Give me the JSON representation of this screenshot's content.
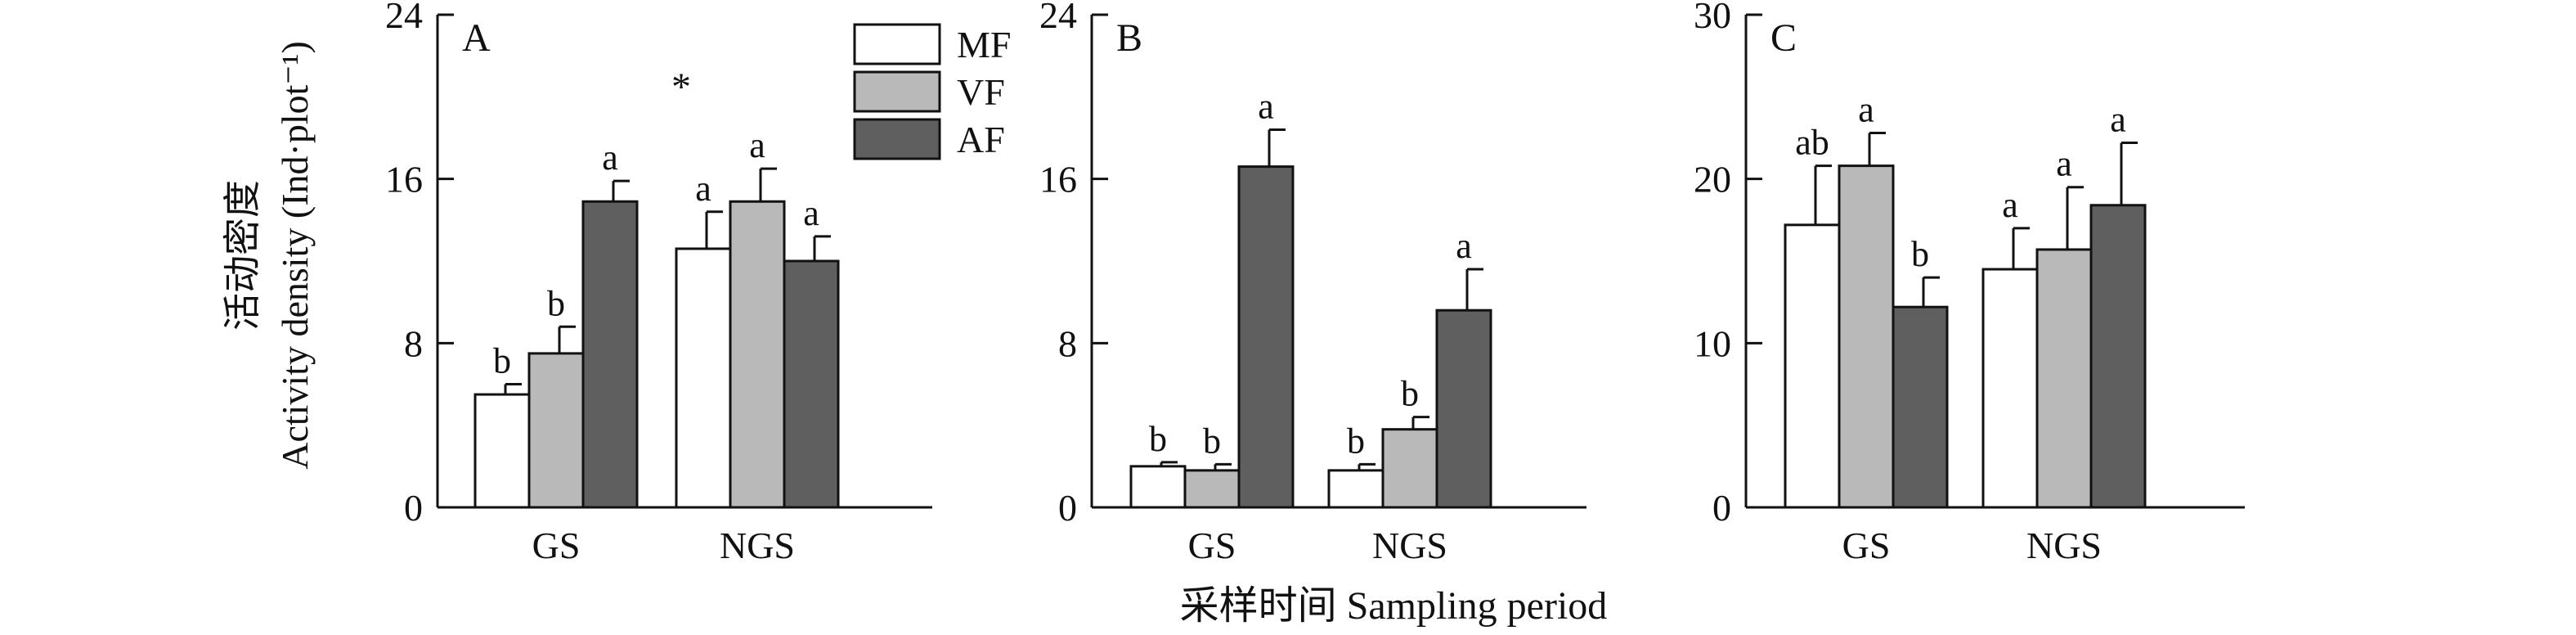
{
  "figure": {
    "ylabel_cn": "活动密度",
    "ylabel_en": "Activity density (Ind·plot⁻¹)",
    "xlabel": "采样时间 Sampling period",
    "legend": {
      "entries": [
        {
          "label": "MF",
          "color": "#ffffff"
        },
        {
          "label": "VF",
          "color": "#b9b9b9"
        },
        {
          "label": "AF",
          "color": "#5f5f5f"
        }
      ],
      "placement": "top-right of panel A"
    }
  },
  "chart_data": [
    {
      "type": "bar",
      "panel_label": "A",
      "categories": [
        "GS",
        "NGS"
      ],
      "ylim": [
        0,
        24
      ],
      "yticks": [
        0,
        8,
        16,
        24
      ],
      "series": [
        {
          "name": "MF",
          "color": "#ffffff",
          "values": [
            5.5,
            12.6
          ],
          "errors": [
            0.5,
            1.8
          ],
          "letters": [
            "b",
            "a"
          ]
        },
        {
          "name": "VF",
          "color": "#b9b9b9",
          "values": [
            7.5,
            14.9
          ],
          "errors": [
            1.3,
            1.6
          ],
          "letters": [
            "b",
            "a"
          ]
        },
        {
          "name": "AF",
          "color": "#5f5f5f",
          "values": [
            14.9,
            12.0
          ],
          "errors": [
            1.0,
            1.2
          ],
          "letters": [
            "a",
            "a"
          ]
        }
      ],
      "annotations": [
        {
          "text": "*",
          "between_categories": true
        }
      ]
    },
    {
      "type": "bar",
      "panel_label": "B",
      "categories": [
        "GS",
        "NGS"
      ],
      "ylim": [
        0,
        24
      ],
      "yticks": [
        0,
        8,
        16,
        24
      ],
      "series": [
        {
          "name": "MF",
          "color": "#ffffff",
          "values": [
            2.0,
            1.8
          ],
          "errors": [
            0.2,
            0.3
          ],
          "letters": [
            "b",
            "b"
          ]
        },
        {
          "name": "VF",
          "color": "#b9b9b9",
          "values": [
            1.8,
            3.8
          ],
          "errors": [
            0.3,
            0.6
          ],
          "letters": [
            "b",
            "b"
          ]
        },
        {
          "name": "AF",
          "color": "#5f5f5f",
          "values": [
            16.6,
            9.6
          ],
          "errors": [
            1.8,
            2.0
          ],
          "letters": [
            "a",
            "a"
          ]
        }
      ]
    },
    {
      "type": "bar",
      "panel_label": "C",
      "categories": [
        "GS",
        "NGS"
      ],
      "ylim": [
        0,
        30
      ],
      "yticks": [
        0,
        10,
        20,
        30
      ],
      "series": [
        {
          "name": "MF",
          "color": "#ffffff",
          "values": [
            17.2,
            14.5
          ],
          "errors": [
            3.6,
            2.5
          ],
          "letters": [
            "ab",
            "a"
          ]
        },
        {
          "name": "VF",
          "color": "#b9b9b9",
          "values": [
            20.8,
            15.7
          ],
          "errors": [
            2.0,
            3.8
          ],
          "letters": [
            "a",
            "a"
          ]
        },
        {
          "name": "AF",
          "color": "#5f5f5f",
          "values": [
            12.2,
            18.4
          ],
          "errors": [
            1.8,
            3.8
          ],
          "letters": [
            "b",
            "a"
          ]
        }
      ]
    }
  ]
}
